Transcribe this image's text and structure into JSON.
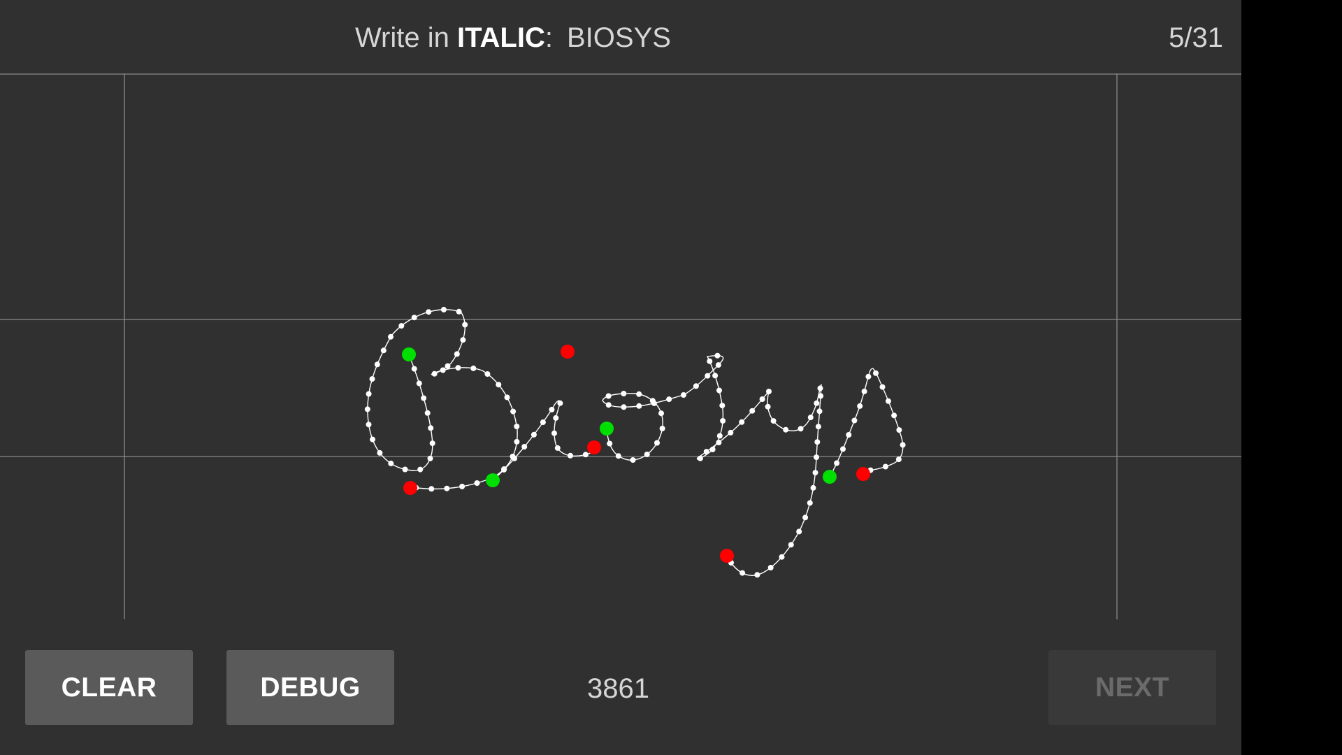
{
  "header": {
    "prompt_prefix": "Write in ",
    "prompt_style": "ITALIC",
    "prompt_colon": ":",
    "target_word": "BIOSYS",
    "counter": "5/31"
  },
  "footer": {
    "clear_label": "CLEAR",
    "debug_label": "DEBUG",
    "score": "3861",
    "next_label": "NEXT"
  },
  "colors": {
    "background": "#303030",
    "ink": "#ffffff",
    "guide_line": "#8a8a8a",
    "stroke_start": "#00e000",
    "stroke_end": "#ff0000",
    "button": "#5a5a5a",
    "button_disabled": "#393939"
  }
}
